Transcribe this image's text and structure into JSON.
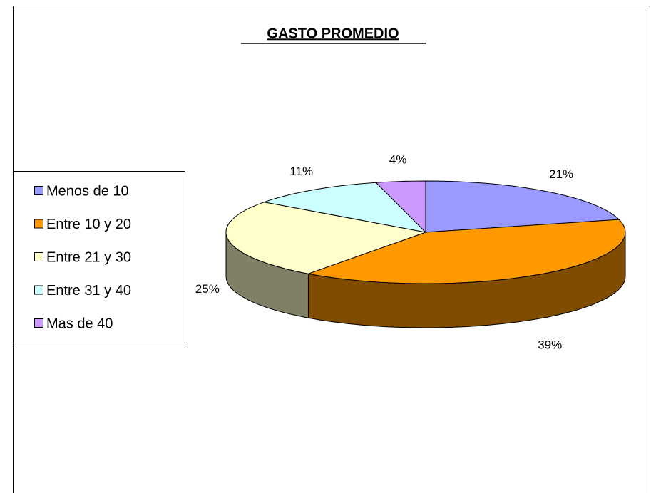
{
  "chart_data": {
    "type": "pie",
    "title": "GASTO PROMEDIO",
    "categories": [
      "Menos de 10",
      "Entre 10 y 20",
      "Entre 21 y 30",
      "Entre 31 y 40",
      "Mas de 40"
    ],
    "values": [
      21,
      39,
      25,
      11,
      4
    ],
    "value_labels": [
      "21%",
      "39%",
      "25%",
      "11%",
      "4%"
    ],
    "colors": [
      "#9999ff",
      "#ff9900",
      "#ffffcc",
      "#ccffff",
      "#cc99ff"
    ],
    "legend": "left"
  }
}
